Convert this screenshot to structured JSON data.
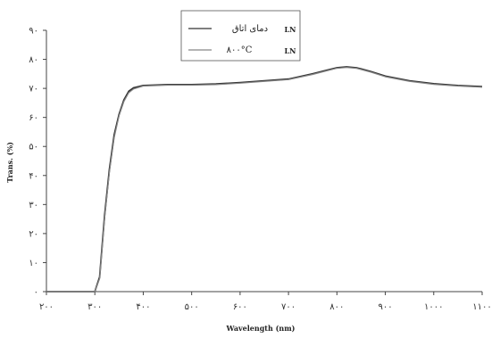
{
  "chart_data": {
    "type": "line",
    "title": "",
    "xlabel": "Wavelength (nm)",
    "ylabel": "Trans. (%)",
    "xlim": [
      200,
      1100
    ],
    "ylim": [
      0,
      90
    ],
    "grid": false,
    "legend_position": "top-center",
    "x_ticks": [
      200,
      300,
      400,
      500,
      600,
      700,
      800,
      900,
      1000,
      1100
    ],
    "x_tick_labels": [
      "۲۰۰",
      "۳۰۰",
      "۴۰۰",
      "۵۰۰",
      "۶۰۰",
      "۷۰۰",
      "۸۰۰",
      "۹۰۰",
      "۱۰۰۰",
      "۱۱۰۰"
    ],
    "y_ticks": [
      0,
      10,
      20,
      30,
      40,
      50,
      60,
      70,
      80,
      90
    ],
    "y_tick_labels": [
      "۰",
      "۱۰",
      "۲۰",
      "۳۰",
      "۴۰",
      "۵۰",
      "۶۰",
      "۷۰",
      "۸۰",
      "۹۰"
    ],
    "legend": [
      {
        "label": "دمای اتاق",
        "sample": "LN",
        "style": "solid",
        "color": "#333333"
      },
      {
        "label": "۸۰۰°C",
        "sample": "LN",
        "style": "solid",
        "color": "#888888"
      }
    ],
    "series": [
      {
        "x": [
          200,
          300,
          310,
          320,
          330,
          340,
          350,
          360,
          370,
          380,
          400,
          450,
          500,
          550,
          600,
          650,
          700,
          750,
          780,
          800,
          820,
          840,
          850,
          870,
          900,
          950,
          1000,
          1050,
          1100
        ],
        "y": [
          0,
          0,
          5,
          26,
          42,
          54,
          61,
          66,
          69,
          70.2,
          71,
          71.3,
          71.3,
          71.5,
          72,
          72.6,
          73.2,
          75,
          76.3,
          77.1,
          77.4,
          77.1,
          76.7,
          75.8,
          74.2,
          72.6,
          71.6,
          71,
          70.6
        ]
      },
      {
        "x": [
          200,
          300,
          310,
          320,
          330,
          340,
          350,
          360,
          370,
          380,
          400,
          450,
          500,
          550,
          600,
          650,
          700,
          750,
          780,
          800,
          820,
          840,
          850,
          870,
          900,
          950,
          1000,
          1050,
          1100
        ],
        "y": [
          0,
          0,
          4.5,
          25,
          41,
          53,
          60.5,
          65.5,
          68.5,
          69.8,
          70.8,
          71.1,
          71.1,
          71.3,
          71.8,
          72.4,
          73,
          74.8,
          76.1,
          76.9,
          77.2,
          76.9,
          76.5,
          75.6,
          74,
          72.4,
          71.4,
          70.8,
          70.4
        ]
      }
    ]
  }
}
